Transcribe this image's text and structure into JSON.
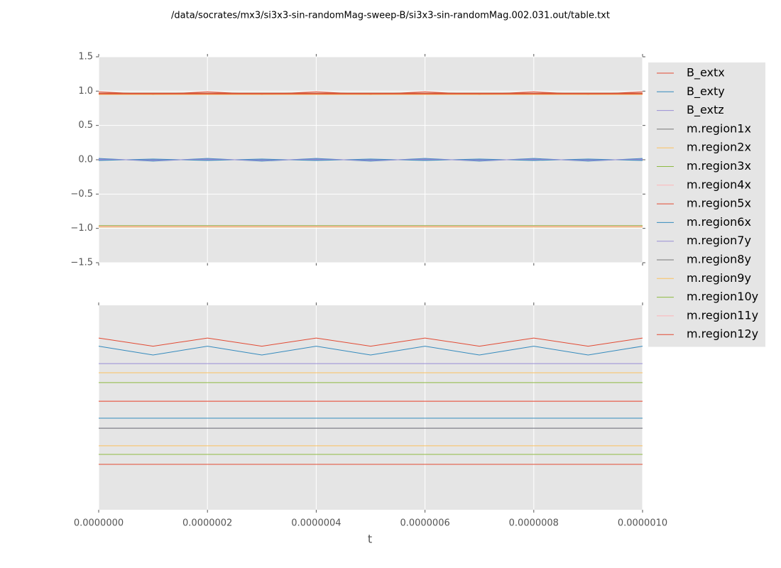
{
  "chart_data": [
    {
      "type": "line",
      "title": "/data/socrates/mx3/si3x3-sin-randomMag-sweep-B/si3x3-sin-randomMag.002.031.out/table.txt",
      "x": [
        0,
        1e-07,
        2e-07,
        3e-07,
        4e-07,
        5e-07,
        6e-07,
        7e-07,
        8e-07,
        9e-07,
        1e-06
      ],
      "xlim": [
        0,
        1e-06
      ],
      "xticks": [
        {
          "value": 0,
          "label": "0.0000000"
        },
        {
          "value": 2e-07,
          "label": "0.0000002"
        },
        {
          "value": 4e-07,
          "label": "0.0000004"
        },
        {
          "value": 6e-07,
          "label": "0.0000006"
        },
        {
          "value": 8e-07,
          "label": "0.0000008"
        },
        {
          "value": 1e-06,
          "label": "0.0000010"
        }
      ],
      "ylim": [
        -1.5,
        1.5
      ],
      "yticks": [
        {
          "value": -1.5,
          "label": "−1.5"
        },
        {
          "value": -1.0,
          "label": "−1.0"
        },
        {
          "value": -0.5,
          "label": "−0.5"
        },
        {
          "value": 0,
          "label": "0.0"
        },
        {
          "value": 0.5,
          "label": "0.5"
        },
        {
          "value": 1.0,
          "label": "1.0"
        },
        {
          "value": 1.5,
          "label": "1.5"
        }
      ],
      "grid": true,
      "legend": "outside right",
      "series": [
        {
          "name": "B_extx",
          "color": "#E24A33",
          "values": [
            0.99,
            0.95,
            0.99,
            0.95,
            0.99,
            0.95,
            0.99,
            0.95,
            0.99,
            0.95,
            0.99
          ]
        },
        {
          "name": "B_exty",
          "color": "#348ABD",
          "values": [
            0.02,
            -0.02,
            0.02,
            -0.02,
            0.02,
            -0.02,
            0.02,
            -0.02,
            0.02,
            -0.02,
            0.02
          ]
        },
        {
          "name": "B_extz",
          "color": "#988ED5",
          "values": [
            0,
            0,
            0,
            0,
            0,
            0,
            0,
            0,
            0,
            0,
            0
          ]
        },
        {
          "name": "m.region1x",
          "color": "#777777",
          "values": [
            0.96,
            0.96,
            0.96,
            0.96,
            0.96,
            0.96,
            0.96,
            0.96,
            0.96,
            0.96,
            0.96
          ]
        },
        {
          "name": "m.region2x",
          "color": "#FBC15E",
          "values": [
            0.95,
            0.95,
            0.95,
            0.95,
            0.95,
            0.95,
            0.95,
            0.95,
            0.95,
            0.95,
            0.95
          ]
        },
        {
          "name": "m.region3x",
          "color": "#8EBA42",
          "values": [
            0.97,
            0.97,
            0.97,
            0.97,
            0.97,
            0.97,
            0.97,
            0.97,
            0.97,
            0.97,
            0.97
          ]
        },
        {
          "name": "m.region4x",
          "color": "#FFB5B8",
          "values": [
            -0.97,
            -0.97,
            -0.97,
            -0.97,
            -0.97,
            -0.97,
            -0.97,
            -0.97,
            -0.97,
            -0.97,
            -0.97
          ]
        },
        {
          "name": "m.region5x",
          "color": "#E24A33",
          "values": [
            0.97,
            0.97,
            0.97,
            0.97,
            0.97,
            0.97,
            0.97,
            0.97,
            0.97,
            0.97,
            0.97
          ]
        },
        {
          "name": "m.region6x",
          "color": "#348ABD",
          "values": [
            -0.01,
            0.01,
            -0.01,
            0.01,
            -0.01,
            0.01,
            -0.01,
            0.01,
            -0.01,
            0.01,
            -0.01
          ]
        },
        {
          "name": "m.region7y",
          "color": "#988ED5",
          "values": [
            0.01,
            -0.01,
            0.01,
            -0.01,
            0.01,
            -0.01,
            0.01,
            -0.01,
            0.01,
            -0.01,
            0.01
          ]
        },
        {
          "name": "m.region8y",
          "color": "#777777",
          "values": [
            -0.97,
            -0.97,
            -0.97,
            -0.97,
            -0.97,
            -0.97,
            -0.97,
            -0.97,
            -0.97,
            -0.97,
            -0.97
          ]
        },
        {
          "name": "m.region9y",
          "color": "#FBC15E",
          "values": [
            -0.98,
            -0.98,
            -0.98,
            -0.98,
            -0.98,
            -0.98,
            -0.98,
            -0.98,
            -0.98,
            -0.98,
            -0.98
          ]
        },
        {
          "name": "m.region10y",
          "color": "#8EBA42",
          "values": [
            -0.96,
            -0.96,
            -0.96,
            -0.96,
            -0.96,
            -0.96,
            -0.96,
            -0.96,
            -0.96,
            -0.96,
            -0.96
          ]
        },
        {
          "name": "m.region11y",
          "color": "#FFB5B8",
          "values": [
            -0.97,
            -0.97,
            -0.97,
            -0.97,
            -0.97,
            -0.97,
            -0.97,
            -0.97,
            -0.97,
            -0.97,
            -0.97
          ]
        },
        {
          "name": "m.region12y",
          "color": "#E24A33",
          "values": [
            0.96,
            0.96,
            0.96,
            0.96,
            0.96,
            0.96,
            0.96,
            0.96,
            0.96,
            0.96,
            0.96
          ]
        }
      ]
    },
    {
      "type": "line",
      "xlabel": "t",
      "x": [
        0,
        1e-07,
        2e-07,
        3e-07,
        4e-07,
        5e-07,
        6e-07,
        7e-07,
        8e-07,
        9e-07,
        1e-06
      ],
      "xlim": [
        0,
        1e-06
      ],
      "xticks": [
        {
          "value": 0,
          "label": "0.0000000"
        },
        {
          "value": 2e-07,
          "label": "0.0000002"
        },
        {
          "value": 4e-07,
          "label": "0.0000004"
        },
        {
          "value": 6e-07,
          "label": "0.0000006"
        },
        {
          "value": 8e-07,
          "label": "0.0000008"
        },
        {
          "value": 1e-06,
          "label": "0.0000010"
        }
      ],
      "ylim": [
        0,
        1
      ],
      "grid": true,
      "series": [
        {
          "color": "#E24A33",
          "values": [
            0.84,
            0.8,
            0.84,
            0.8,
            0.84,
            0.8,
            0.84,
            0.8,
            0.84,
            0.8,
            0.84
          ]
        },
        {
          "color": "#348ABD",
          "values": [
            0.8,
            0.757,
            0.8,
            0.757,
            0.8,
            0.757,
            0.8,
            0.757,
            0.8,
            0.757,
            0.8
          ]
        },
        {
          "color": "#988ED5",
          "values": [
            0.715,
            0.715,
            0.715,
            0.715,
            0.715,
            0.715,
            0.715,
            0.715,
            0.715,
            0.715,
            0.715
          ]
        },
        {
          "color": "#777777",
          "values": [
            0.67,
            0.67,
            0.67,
            0.67,
            0.67,
            0.67,
            0.67,
            0.67,
            0.67,
            0.67,
            0.67
          ]
        },
        {
          "color": "#FBC15E",
          "values": [
            0.67,
            0.67,
            0.67,
            0.67,
            0.67,
            0.67,
            0.67,
            0.67,
            0.67,
            0.67,
            0.67
          ]
        },
        {
          "color": "#8EBA42",
          "values": [
            0.622,
            0.622,
            0.622,
            0.622,
            0.622,
            0.622,
            0.622,
            0.622,
            0.622,
            0.622,
            0.622
          ]
        },
        {
          "color": "#FFB5B8",
          "values": [
            0.531,
            0.531,
            0.531,
            0.531,
            0.531,
            0.531,
            0.531,
            0.531,
            0.531,
            0.531,
            0.531
          ]
        },
        {
          "color": "#E24A33",
          "values": [
            0.531,
            0.531,
            0.531,
            0.531,
            0.531,
            0.531,
            0.531,
            0.531,
            0.531,
            0.531,
            0.531
          ]
        },
        {
          "color": "#348ABD",
          "values": [
            0.448,
            0.448,
            0.448,
            0.448,
            0.448,
            0.448,
            0.448,
            0.448,
            0.448,
            0.448,
            0.448
          ]
        },
        {
          "color": "#988ED5",
          "values": [
            0.399,
            0.399,
            0.399,
            0.399,
            0.399,
            0.399,
            0.399,
            0.399,
            0.399,
            0.399,
            0.399
          ]
        },
        {
          "color": "#777777",
          "values": [
            0.399,
            0.399,
            0.399,
            0.399,
            0.399,
            0.399,
            0.399,
            0.399,
            0.399,
            0.399,
            0.399
          ]
        },
        {
          "color": "#FBC15E",
          "values": [
            0.313,
            0.313,
            0.313,
            0.313,
            0.313,
            0.313,
            0.313,
            0.313,
            0.313,
            0.313,
            0.313
          ]
        },
        {
          "color": "#8EBA42",
          "values": [
            0.271,
            0.271,
            0.271,
            0.271,
            0.271,
            0.271,
            0.271,
            0.271,
            0.271,
            0.271,
            0.271
          ]
        },
        {
          "color": "#FFB5B8",
          "values": [
            0.222,
            0.222,
            0.222,
            0.222,
            0.222,
            0.222,
            0.222,
            0.222,
            0.222,
            0.222,
            0.222
          ]
        },
        {
          "color": "#E24A33",
          "values": [
            0.222,
            0.222,
            0.222,
            0.222,
            0.222,
            0.222,
            0.222,
            0.222,
            0.222,
            0.222,
            0.222
          ]
        }
      ]
    }
  ]
}
